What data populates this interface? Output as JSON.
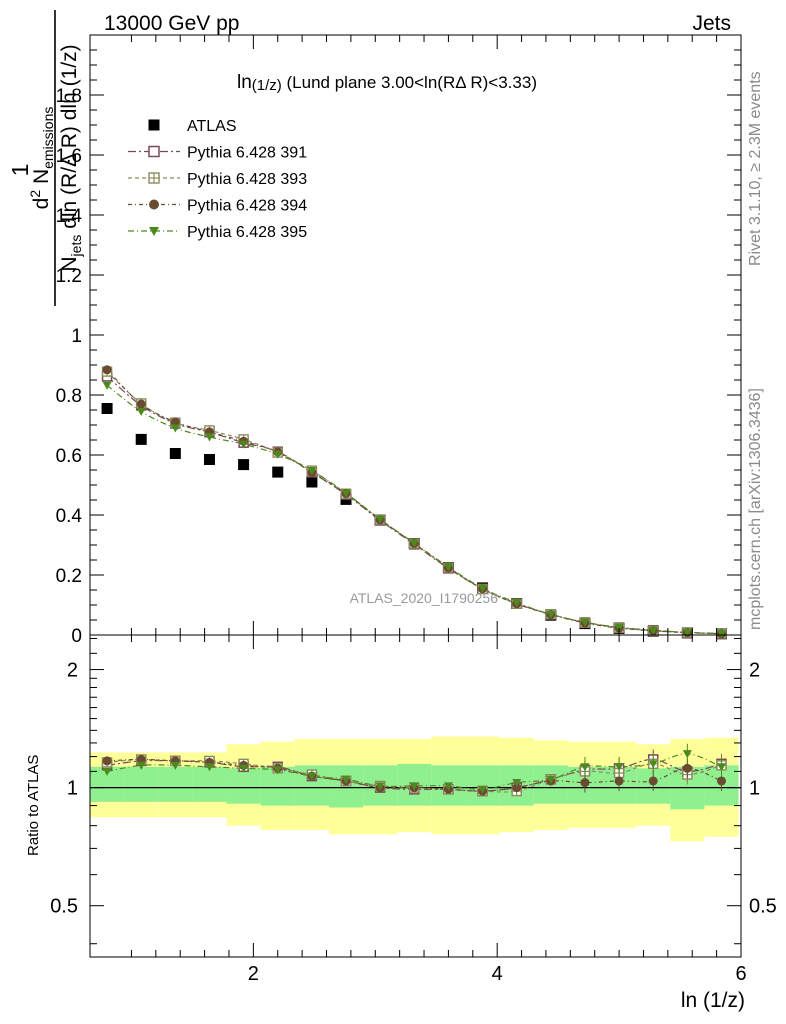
{
  "header": {
    "left": "13000 GeV pp",
    "right": "Jets"
  },
  "title": {
    "main": "ln",
    "main_sub": "(1/z)",
    "rest": " (Lund plane 3.00<ln(RΔ R)<3.33)"
  },
  "ylabel": {
    "one": "1",
    "num_d": "d",
    "num_sup": "2",
    "num_n": " N",
    "num_sub": "emissions",
    "den_n": "N",
    "den_sub": "jets",
    "den_rest": " dln (R/Δ R) dln (1/z)"
  },
  "xlabel": "ln (1/z)",
  "ratio_ylabel": "Ratio to ATLAS",
  "right_side": {
    "top": "Rivet 3.1.10, ≥ 2.3M events",
    "bottom": "mcplots.cern.ch [arXiv:1306.3436]"
  },
  "watermark": "ATLAS_2020_I1790256",
  "legend": [
    {
      "label": "ATLAS",
      "marker": "filled-square",
      "color": "#000000"
    },
    {
      "label": "Pythia 6.428 391",
      "marker": "open-square",
      "color": "#7a4a5a"
    },
    {
      "label": "Pythia 6.428 393",
      "marker": "open-cross-square",
      "color": "#8c8c5a"
    },
    {
      "label": "Pythia 6.428 394",
      "marker": "filled-circle",
      "color": "#6b4a32"
    },
    {
      "label": "Pythia 6.428 395",
      "marker": "filled-triangle-down",
      "color": "#4c8a1e"
    }
  ],
  "chart_data": {
    "type": "scatter",
    "x": [
      0.8,
      1.08,
      1.36,
      1.64,
      1.92,
      2.2,
      2.48,
      2.76,
      3.04,
      3.32,
      3.6,
      3.88,
      4.16,
      4.44,
      4.72,
      5.0,
      5.28,
      5.56,
      5.84
    ],
    "xlim": [
      0.66,
      6.0
    ],
    "x_ticks": [
      2,
      4,
      6
    ],
    "top": {
      "ylim": [
        0,
        2.0
      ],
      "y_ticks": [
        0,
        0.2,
        0.4,
        0.6,
        0.8,
        1,
        1.2,
        1.4,
        1.6,
        1.8
      ],
      "y_tick_labels": [
        "0",
        "0.2",
        "0.4",
        "0.6",
        "0.8",
        "1",
        "1.2",
        "1.4",
        "1.6",
        "1.8"
      ]
    },
    "bottom": {
      "ylim": [
        0.37,
        2.45
      ],
      "log_scale": true,
      "y_ticks": [
        0.5,
        1,
        2
      ],
      "y_tick_labels": [
        "0.5",
        "1",
        "2"
      ],
      "band_inner_colour": "#90f090",
      "band_outer_colour": "#ffff99",
      "band_inner": [
        [
          0.92,
          1.13
        ],
        [
          0.92,
          1.13
        ],
        [
          0.92,
          1.13
        ],
        [
          0.92,
          1.13
        ],
        [
          0.91,
          1.12
        ],
        [
          0.9,
          1.13
        ],
        [
          0.9,
          1.14
        ],
        [
          0.89,
          1.14
        ],
        [
          0.9,
          1.14
        ],
        [
          0.9,
          1.15
        ],
        [
          0.9,
          1.14
        ],
        [
          0.9,
          1.14
        ],
        [
          0.9,
          1.14
        ],
        [
          0.91,
          1.14
        ],
        [
          0.91,
          1.13
        ],
        [
          0.91,
          1.13
        ],
        [
          0.91,
          1.12
        ],
        [
          0.88,
          1.13
        ],
        [
          0.9,
          1.14
        ]
      ],
      "band_outer": [
        [
          0.84,
          1.23
        ],
        [
          0.84,
          1.23
        ],
        [
          0.84,
          1.23
        ],
        [
          0.84,
          1.23
        ],
        [
          0.8,
          1.29
        ],
        [
          0.78,
          1.31
        ],
        [
          0.78,
          1.33
        ],
        [
          0.76,
          1.33
        ],
        [
          0.76,
          1.33
        ],
        [
          0.77,
          1.33
        ],
        [
          0.76,
          1.35
        ],
        [
          0.76,
          1.35
        ],
        [
          0.77,
          1.34
        ],
        [
          0.78,
          1.32
        ],
        [
          0.79,
          1.31
        ],
        [
          0.79,
          1.31
        ],
        [
          0.8,
          1.29
        ],
        [
          0.73,
          1.33
        ],
        [
          0.75,
          1.34
        ]
      ]
    },
    "series": [
      {
        "name": "ATLAS",
        "marker": "filled-square",
        "color": "#000000",
        "values": [
          0.755,
          0.652,
          0.605,
          0.585,
          0.568,
          0.543,
          0.51,
          0.452,
          0.383,
          0.305,
          0.225,
          0.157,
          0.105,
          0.066,
          0.038,
          0.022,
          0.013,
          0.007,
          0.004
        ]
      },
      {
        "name": "Pythia 6.428 391",
        "marker": "open-square",
        "color": "#7a4a5a",
        "dash": "8,3,2,3",
        "values": [
          0.862,
          0.765,
          0.705,
          0.676,
          0.641,
          0.611,
          0.542,
          0.468,
          0.382,
          0.302,
          0.222,
          0.154,
          0.105,
          0.069,
          0.042,
          0.025,
          0.016,
          0.008,
          0.005
        ]
      },
      {
        "name": "Pythia 6.428 393",
        "marker": "open-cross-square",
        "color": "#8c8c5a",
        "dash": "4,3",
        "values": [
          0.878,
          0.772,
          0.708,
          0.682,
          0.652,
          0.608,
          0.548,
          0.471,
          0.385,
          0.305,
          0.225,
          0.153,
          0.104,
          0.069,
          0.041,
          0.024,
          0.014,
          0.008,
          0.005
        ]
      },
      {
        "name": "Pythia 6.428 394",
        "marker": "filled-circle",
        "color": "#6b4a32",
        "dash": "4,3,1,3",
        "values": [
          0.884,
          0.77,
          0.71,
          0.677,
          0.646,
          0.61,
          0.542,
          0.472,
          0.384,
          0.305,
          0.224,
          0.154,
          0.104,
          0.068,
          0.04,
          0.023,
          0.014,
          0.008,
          0.004
        ]
      },
      {
        "name": "Pythia 6.428 395",
        "marker": "filled-triangle-down",
        "color": "#4c8a1e",
        "dash": "6,3,1,3",
        "values": [
          0.832,
          0.745,
          0.69,
          0.66,
          0.636,
          0.602,
          0.548,
          0.473,
          0.386,
          0.306,
          0.227,
          0.156,
          0.108,
          0.069,
          0.043,
          0.025,
          0.015,
          0.009,
          0.005
        ]
      }
    ],
    "ratios": [
      [
        1.14,
        1.17,
        1.17,
        1.16,
        1.13,
        1.13,
        1.07,
        1.04,
        1.0,
        0.99,
        0.99,
        0.98,
        1.0,
        1.05,
        1.11,
        1.12,
        1.18,
        1.1,
        1.15
      ],
      [
        1.16,
        1.18,
        1.17,
        1.17,
        1.15,
        1.12,
        1.08,
        1.04,
        1.01,
        1.0,
        0.99,
        0.98,
        0.98,
        1.05,
        1.1,
        1.09,
        1.15,
        1.08,
        1.14
      ],
      [
        1.17,
        1.18,
        1.17,
        1.16,
        1.14,
        1.12,
        1.07,
        1.04,
        1.0,
        1.0,
        0.99,
        0.98,
        1.0,
        1.04,
        1.03,
        1.04,
        1.04,
        1.12,
        1.04
      ],
      [
        1.1,
        1.14,
        1.14,
        1.13,
        1.12,
        1.11,
        1.07,
        1.05,
        1.01,
        1.01,
        1.01,
        0.99,
        1.03,
        1.05,
        1.13,
        1.13,
        1.15,
        1.22,
        1.13
      ]
    ]
  }
}
